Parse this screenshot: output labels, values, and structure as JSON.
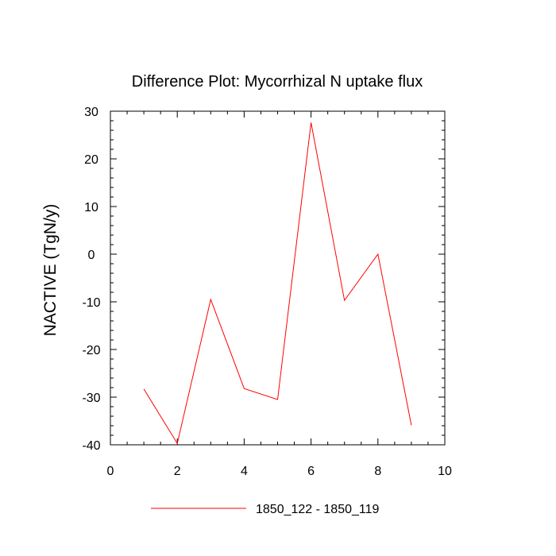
{
  "chart_data": {
    "type": "line",
    "title": "Difference Plot: Mycorrhizal N uptake flux",
    "xlabel": "",
    "ylabel": "NACTIVE  (TgN/y)",
    "xlim": [
      0,
      10
    ],
    "ylim": [
      -40,
      30
    ],
    "x_ticks": [
      0,
      2,
      4,
      6,
      8,
      10
    ],
    "x_tick_labels": [
      "0",
      "2",
      "4",
      "6",
      "8",
      "10"
    ],
    "y_ticks": [
      -40,
      -30,
      -20,
      -10,
      0,
      10,
      20,
      30
    ],
    "y_tick_labels": [
      "-40",
      "-30",
      "-20",
      "-10",
      "0",
      "10",
      "20",
      "30"
    ],
    "grid": false,
    "legend_position": "bottom-center",
    "series": [
      {
        "name": "1850_122 - 1850_119",
        "color": "#ff0000",
        "x": [
          1,
          2,
          3,
          4,
          5,
          6,
          7,
          8,
          9
        ],
        "values": [
          -28.3,
          -39.7,
          -9.5,
          -28.2,
          -30.5,
          27.6,
          -9.7,
          0.0,
          -35.9
        ]
      }
    ]
  }
}
